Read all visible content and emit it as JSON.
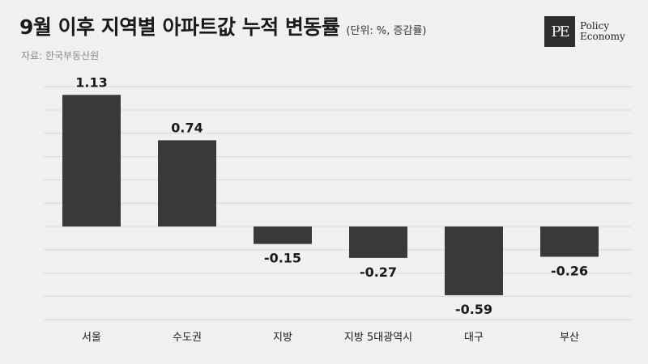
{
  "header": {
    "title": "9월 이후 지역별 아파트값 누적 변동률",
    "unit": "(단위: %, 증감률)",
    "source": "자료: 한국부동산원"
  },
  "logo": {
    "mark": "PE",
    "line1": "Policy",
    "line2": "Economy"
  },
  "chart_data": {
    "type": "bar",
    "title": "9월 이후 지역별 아파트값 누적 변동률",
    "unit": "(단위: %, 증감률)",
    "categories": [
      "서울",
      "수도권",
      "지방",
      "지방 5대광역시",
      "대구",
      "부산"
    ],
    "values": [
      1.13,
      0.74,
      -0.15,
      -0.27,
      -0.59,
      -0.26
    ],
    "value_labels": [
      "1.13",
      "0.74",
      "-0.15",
      "-0.27",
      "-0.59",
      "-0.26"
    ],
    "ylim": [
      -0.8,
      1.2
    ],
    "bar_color": "#3a3838",
    "grid": true
  }
}
